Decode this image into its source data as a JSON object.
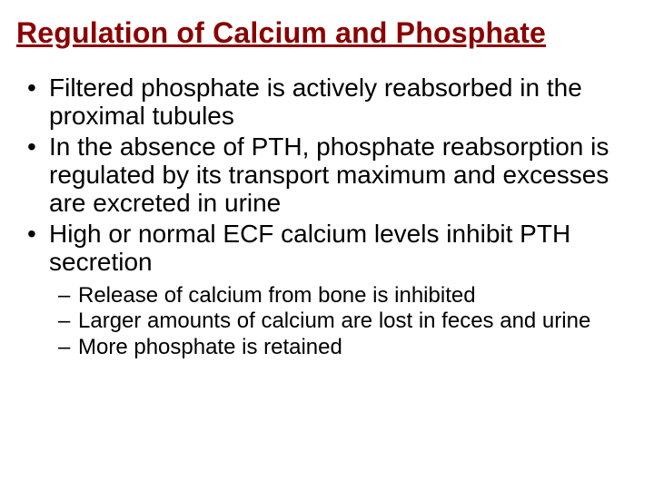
{
  "slide": {
    "title": "Regulation of Calcium and Phosphate",
    "title_color": "#8b0000",
    "background_color": "#ffffff",
    "body_color": "#000000",
    "bullets": [
      {
        "text": "Filtered phosphate is actively reabsorbed in the proximal tubules"
      },
      {
        "text": "In the absence of PTH, phosphate reabsorption is regulated by its transport maximum and excesses are excreted in urine"
      },
      {
        "text": "High or normal ECF calcium levels inhibit PTH secretion"
      }
    ],
    "sub_bullets": [
      {
        "text": "Release of calcium from bone is inhibited"
      },
      {
        "text": "Larger amounts of calcium are lost in feces and urine"
      },
      {
        "text": "More phosphate is retained"
      }
    ]
  }
}
